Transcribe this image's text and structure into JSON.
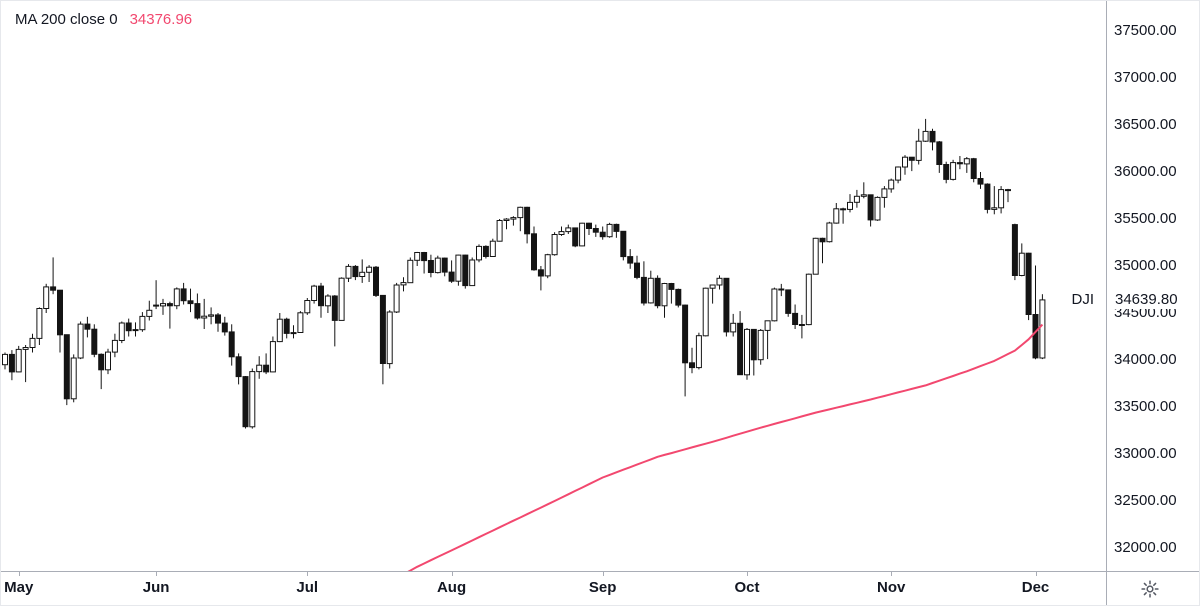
{
  "legend": {
    "indicator": "MA 200 close 0",
    "value": "34376.96"
  },
  "price_label": {
    "symbol": "DJI",
    "last_price": "34639.80"
  },
  "colors": {
    "ma_line": "#f2486f",
    "candle": "#141414",
    "candle_up_fill": "#ffffff",
    "axis_text": "#131722",
    "axis_line": "#a9adb6",
    "background": "#ffffff",
    "icon": "#555963"
  },
  "y_axis": {
    "tick_labels": [
      "37500.00",
      "37000.00",
      "36500.00",
      "36000.00",
      "35500.00",
      "35000.00",
      "34500.00",
      "34000.00",
      "33500.00",
      "33000.00",
      "32500.00",
      "32000.00"
    ]
  },
  "x_axis": {
    "months": [
      "May",
      "Jun",
      "Jul",
      "Aug",
      "Sep",
      "Oct",
      "Nov",
      "Dec"
    ]
  },
  "chart_data": {
    "type": "candlestick",
    "symbol": "DJI",
    "title": "",
    "grid": false,
    "legend_position": "top-left",
    "y_ticks": [
      37500,
      37000,
      36500,
      36000,
      35500,
      35000,
      34500,
      34000,
      33500,
      33000,
      32500,
      32000
    ],
    "ylim": [
      31750,
      37800
    ],
    "last_price": 34639.8,
    "month_start_indices": [
      2,
      22,
      44,
      65,
      87,
      108,
      129,
      150
    ],
    "ohlc": [
      [
        33950,
        34080,
        33900,
        34060
      ],
      [
        34060,
        34105,
        33785,
        33874
      ],
      [
        33874,
        34150,
        33870,
        34113
      ],
      [
        34113,
        34160,
        33765,
        34133
      ],
      [
        34133,
        34280,
        34080,
        34230
      ],
      [
        34230,
        34560,
        34160,
        34548
      ],
      [
        34548,
        34811,
        34500,
        34778
      ],
      [
        34778,
        35091,
        34700,
        34743
      ],
      [
        34743,
        34745,
        34080,
        34269
      ],
      [
        34269,
        34270,
        33520,
        33587
      ],
      [
        33587,
        34060,
        33550,
        34021
      ],
      [
        34021,
        34410,
        34010,
        34382
      ],
      [
        34382,
        34460,
        34240,
        34328
      ],
      [
        34328,
        34380,
        34030,
        34061
      ],
      [
        34061,
        34070,
        33690,
        33896
      ],
      [
        33896,
        34120,
        33850,
        34084
      ],
      [
        34084,
        34280,
        34030,
        34208
      ],
      [
        34208,
        34410,
        34180,
        34394
      ],
      [
        34394,
        34440,
        34250,
        34312
      ],
      [
        34312,
        34400,
        34250,
        34323
      ],
      [
        34323,
        34510,
        34300,
        34464
      ],
      [
        34464,
        34631,
        34420,
        34529
      ],
      [
        34584,
        34849,
        34542,
        34575
      ],
      [
        34575,
        34650,
        34480,
        34600
      ],
      [
        34600,
        34620,
        34334,
        34577
      ],
      [
        34577,
        34772,
        34540,
        34756
      ],
      [
        34756,
        34820,
        34590,
        34630
      ],
      [
        34630,
        34760,
        34510,
        34600
      ],
      [
        34600,
        34707,
        34430,
        34447
      ],
      [
        34447,
        34650,
        34330,
        34466
      ],
      [
        34466,
        34560,
        34380,
        34480
      ],
      [
        34480,
        34500,
        34300,
        34393
      ],
      [
        34393,
        34460,
        34260,
        34299
      ],
      [
        34299,
        34380,
        33940,
        34034
      ],
      [
        34034,
        34070,
        33740,
        33823
      ],
      [
        33823,
        33830,
        33271,
        33290
      ],
      [
        33290,
        33910,
        33270,
        33877
      ],
      [
        33877,
        34040,
        33800,
        33945
      ],
      [
        33945,
        34070,
        33850,
        33874
      ],
      [
        33874,
        34250,
        33870,
        34196
      ],
      [
        34196,
        34500,
        34190,
        34434
      ],
      [
        34434,
        34450,
        34230,
        34283
      ],
      [
        34283,
        34370,
        34230,
        34292
      ],
      [
        34292,
        34520,
        34290,
        34502
      ],
      [
        34502,
        34660,
        34480,
        34633
      ],
      [
        34633,
        34800,
        34600,
        34786
      ],
      [
        34786,
        34820,
        34450,
        34577
      ],
      [
        34577,
        34700,
        34500,
        34681
      ],
      [
        34681,
        34690,
        34145,
        34421
      ],
      [
        34421,
        34880,
        34420,
        34870
      ],
      [
        34870,
        35020,
        34830,
        34996
      ],
      [
        34996,
        35010,
        34850,
        34888
      ],
      [
        34888,
        35070,
        34820,
        34933
      ],
      [
        34933,
        35010,
        34830,
        34987
      ],
      [
        34987,
        35000,
        34670,
        34687
      ],
      [
        34687,
        34690,
        33741,
        33962
      ],
      [
        33962,
        34530,
        33910,
        34511
      ],
      [
        34511,
        34820,
        34500,
        34798
      ],
      [
        34798,
        34880,
        34730,
        34823
      ],
      [
        34823,
        35090,
        34820,
        35061
      ],
      [
        35061,
        35150,
        35000,
        35144
      ],
      [
        35144,
        35150,
        34920,
        35058
      ],
      [
        35058,
        35120,
        34880,
        34930
      ],
      [
        34930,
        35110,
        34920,
        35084
      ],
      [
        35084,
        35090,
        34890,
        34935
      ],
      [
        34935,
        35060,
        34820,
        34838
      ],
      [
        34838,
        35120,
        34790,
        35116
      ],
      [
        35116,
        35120,
        34760,
        34792
      ],
      [
        34792,
        35090,
        34790,
        35064
      ],
      [
        35064,
        35230,
        35040,
        35208
      ],
      [
        35208,
        35220,
        35080,
        35101
      ],
      [
        35101,
        35290,
        35100,
        35264
      ],
      [
        35264,
        35500,
        35260,
        35484
      ],
      [
        35484,
        35510,
        35390,
        35499
      ],
      [
        35499,
        35530,
        35430,
        35515
      ],
      [
        35515,
        35631,
        35370,
        35625
      ],
      [
        35625,
        35630,
        35240,
        35343
      ],
      [
        35343,
        35420,
        34950,
        34960
      ],
      [
        34960,
        35000,
        34740,
        34894
      ],
      [
        34894,
        35130,
        34870,
        35120
      ],
      [
        35120,
        35360,
        35110,
        35335
      ],
      [
        35335,
        35420,
        35320,
        35366
      ],
      [
        35366,
        35440,
        35340,
        35405
      ],
      [
        35405,
        35410,
        35200,
        35213
      ],
      [
        35213,
        35460,
        35210,
        35455
      ],
      [
        35455,
        35460,
        35330,
        35399
      ],
      [
        35399,
        35440,
        35310,
        35360
      ],
      [
        35360,
        35420,
        35280,
        35312
      ],
      [
        35312,
        35460,
        35300,
        35443
      ],
      [
        35443,
        35450,
        35300,
        35369
      ],
      [
        35369,
        35370,
        35060,
        35100
      ],
      [
        35100,
        35180,
        34970,
        35031
      ],
      [
        35031,
        35110,
        34860,
        34879
      ],
      [
        34879,
        35050,
        34580,
        34607
      ],
      [
        34607,
        34950,
        34600,
        34869
      ],
      [
        34869,
        34900,
        34550,
        34577
      ],
      [
        34577,
        34820,
        34450,
        34814
      ],
      [
        34814,
        34820,
        34600,
        34751
      ],
      [
        34751,
        34760,
        34560,
        34584
      ],
      [
        34584,
        34590,
        33613,
        33970
      ],
      [
        33970,
        34130,
        33860,
        33919
      ],
      [
        33919,
        34290,
        33900,
        34258
      ],
      [
        34258,
        34770,
        34250,
        34764
      ],
      [
        34764,
        34800,
        34600,
        34798
      ],
      [
        34798,
        34900,
        34750,
        34869
      ],
      [
        34869,
        34870,
        34250,
        34299
      ],
      [
        34299,
        34490,
        34250,
        34390
      ],
      [
        34390,
        34520,
        33840,
        33843
      ],
      [
        33843,
        34340,
        33790,
        34326
      ],
      [
        34326,
        34330,
        33835,
        34003
      ],
      [
        34003,
        34330,
        33950,
        34315
      ],
      [
        34315,
        34420,
        34010,
        34417
      ],
      [
        34417,
        34770,
        34410,
        34755
      ],
      [
        34755,
        34810,
        34680,
        34746
      ],
      [
        34746,
        34750,
        34460,
        34496
      ],
      [
        34496,
        34590,
        34330,
        34378
      ],
      [
        34378,
        34480,
        34230,
        34377
      ],
      [
        34377,
        34920,
        34370,
        34913
      ],
      [
        34913,
        35300,
        34910,
        35295
      ],
      [
        35295,
        35300,
        35030,
        35258
      ],
      [
        35258,
        35470,
        35250,
        35457
      ],
      [
        35457,
        35670,
        35450,
        35609
      ],
      [
        35609,
        35620,
        35450,
        35603
      ],
      [
        35603,
        35765,
        35570,
        35677
      ],
      [
        35677,
        35810,
        35620,
        35741
      ],
      [
        35741,
        35890,
        35720,
        35757
      ],
      [
        35757,
        35760,
        35420,
        35490
      ],
      [
        35490,
        35740,
        35480,
        35730
      ],
      [
        35730,
        35850,
        35620,
        35820
      ],
      [
        35820,
        35930,
        35780,
        35914
      ],
      [
        35914,
        36060,
        35880,
        36053
      ],
      [
        36053,
        36180,
        35970,
        36157
      ],
      [
        36157,
        36160,
        36010,
        36124
      ],
      [
        36124,
        36460,
        36080,
        36328
      ],
      [
        36328,
        36565,
        36320,
        36432
      ],
      [
        36432,
        36460,
        36230,
        36320
      ],
      [
        36320,
        36330,
        35990,
        36080
      ],
      [
        36080,
        36110,
        35880,
        35921
      ],
      [
        35921,
        36130,
        35910,
        36100
      ],
      [
        36100,
        36170,
        36030,
        36087
      ],
      [
        36087,
        36160,
        35990,
        36142
      ],
      [
        36142,
        36150,
        35890,
        35931
      ],
      [
        35931,
        36000,
        35820,
        35871
      ],
      [
        35871,
        35880,
        35560,
        35602
      ],
      [
        35602,
        35850,
        35550,
        35619
      ],
      [
        35619,
        35850,
        35560,
        35813
      ],
      [
        35813,
        35820,
        35680,
        35804
      ],
      [
        35440,
        35450,
        34850,
        34899
      ],
      [
        34899,
        35240,
        34890,
        35136
      ],
      [
        35136,
        35140,
        34424,
        34484
      ],
      [
        34484,
        35005,
        34007,
        34022
      ],
      [
        34022,
        34700,
        34010,
        34639.8
      ]
    ],
    "overlays": [
      {
        "name": "MA 200 close 0",
        "type": "line",
        "color": "#f2486f",
        "last_value": 34376.96,
        "anchors": [
          [
            48,
            31300
          ],
          [
            55,
            31600
          ],
          [
            60,
            31800
          ],
          [
            70,
            32150
          ],
          [
            80,
            32500
          ],
          [
            87,
            32750
          ],
          [
            95,
            32970
          ],
          [
            103,
            33130
          ],
          [
            110,
            33280
          ],
          [
            118,
            33440
          ],
          [
            126,
            33580
          ],
          [
            134,
            33730
          ],
          [
            140,
            33880
          ],
          [
            144,
            33990
          ],
          [
            147,
            34100
          ],
          [
            149,
            34220
          ],
          [
            151,
            34376.96
          ]
        ]
      }
    ]
  }
}
